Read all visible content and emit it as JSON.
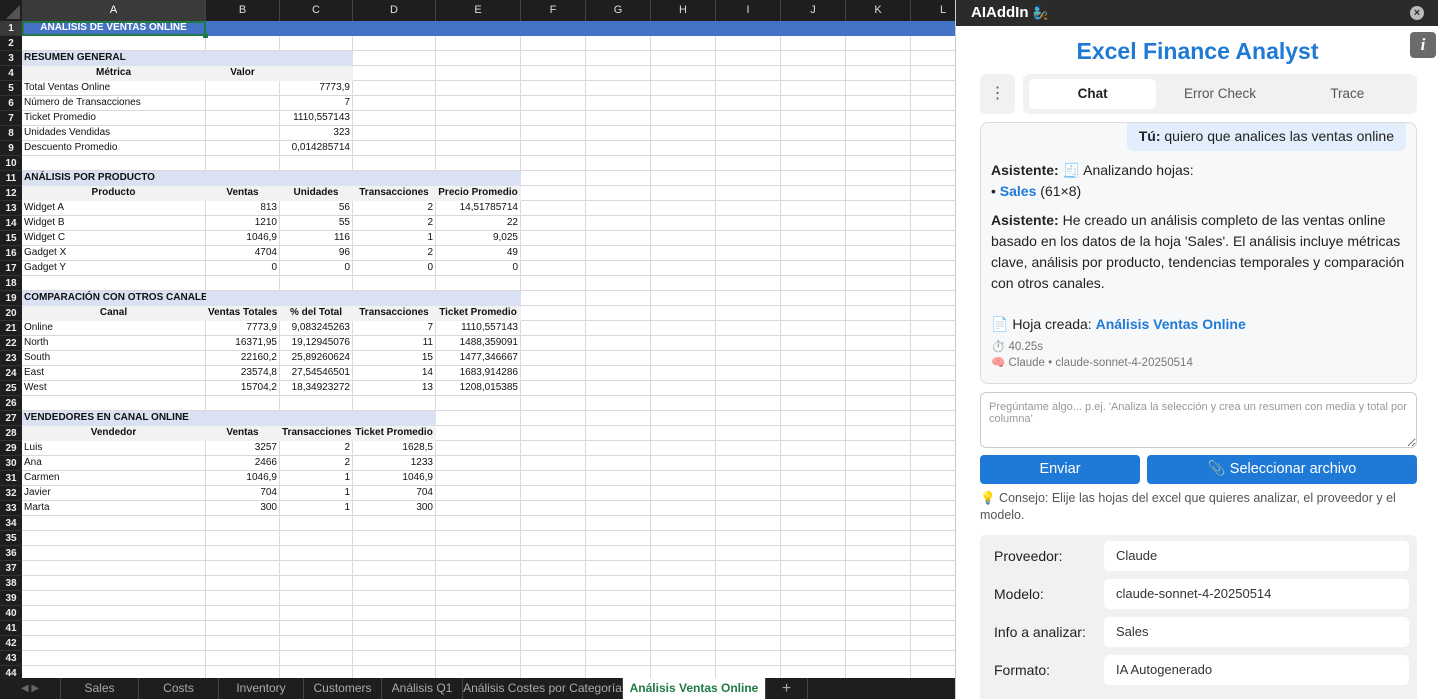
{
  "spreadsheet": {
    "columns": [
      "A",
      "B",
      "C",
      "D",
      "E",
      "F",
      "G",
      "H",
      "I",
      "J",
      "K",
      "L"
    ],
    "selected_cell": "A1",
    "rows": [
      {
        "r": 1,
        "style": "title",
        "span": 5,
        "cells": [
          "ANÁLISIS DE VENTAS ONLINE"
        ]
      },
      {
        "r": 2,
        "cells": []
      },
      {
        "r": 3,
        "style": "sec",
        "span": 3,
        "cells": [
          "RESUMEN GENERAL"
        ]
      },
      {
        "r": 4,
        "style": "hdr",
        "span": 3,
        "cells": [
          "Métrica",
          "Valor",
          ""
        ]
      },
      {
        "r": 5,
        "cells": [
          "Total Ventas Online",
          "",
          "7773,9"
        ]
      },
      {
        "r": 6,
        "cells": [
          "Número de Transacciones",
          "",
          "7"
        ]
      },
      {
        "r": 7,
        "cells": [
          "Ticket Promedio",
          "",
          "1110,557143"
        ]
      },
      {
        "r": 8,
        "cells": [
          "Unidades Vendidas",
          "",
          "323"
        ]
      },
      {
        "r": 9,
        "cells": [
          "Descuento Promedio",
          "",
          "0,014285714"
        ]
      },
      {
        "r": 10,
        "cells": []
      },
      {
        "r": 11,
        "style": "sec",
        "span": 5,
        "cells": [
          "ANÁLISIS POR PRODUCTO"
        ]
      },
      {
        "r": 12,
        "style": "hdr",
        "span": 5,
        "cells": [
          "Producto",
          "Ventas",
          "Unidades",
          "Transacciones",
          "Precio Promedio"
        ]
      },
      {
        "r": 13,
        "cells": [
          "Widget A",
          "813",
          "56",
          "2",
          "14,51785714"
        ]
      },
      {
        "r": 14,
        "cells": [
          "Widget B",
          "1210",
          "55",
          "2",
          "22"
        ]
      },
      {
        "r": 15,
        "cells": [
          "Widget C",
          "1046,9",
          "116",
          "1",
          "9,025"
        ]
      },
      {
        "r": 16,
        "cells": [
          "Gadget X",
          "4704",
          "96",
          "2",
          "49"
        ]
      },
      {
        "r": 17,
        "cells": [
          "Gadget Y",
          "0",
          "0",
          "0",
          "0"
        ]
      },
      {
        "r": 18,
        "cells": []
      },
      {
        "r": 19,
        "style": "sec",
        "span": 5,
        "cells": [
          "COMPARACIÓN CON OTROS CANALES"
        ]
      },
      {
        "r": 20,
        "style": "hdr",
        "span": 5,
        "cells": [
          "Canal",
          "Ventas Totales",
          "% del Total",
          "Transacciones",
          "Ticket Promedio"
        ]
      },
      {
        "r": 21,
        "cells": [
          "Online",
          "7773,9",
          "9,083245263",
          "7",
          "1110,557143"
        ]
      },
      {
        "r": 22,
        "cells": [
          "North",
          "16371,95",
          "19,12945076",
          "11",
          "1488,359091"
        ]
      },
      {
        "r": 23,
        "cells": [
          "South",
          "22160,2",
          "25,89260624",
          "15",
          "1477,346667"
        ]
      },
      {
        "r": 24,
        "cells": [
          "East",
          "23574,8",
          "27,54546501",
          "14",
          "1683,914286"
        ]
      },
      {
        "r": 25,
        "cells": [
          "West",
          "15704,2",
          "18,34923272",
          "13",
          "1208,015385"
        ]
      },
      {
        "r": 26,
        "cells": []
      },
      {
        "r": 27,
        "style": "sec",
        "span": 4,
        "cells": [
          "VENDEDORES EN CANAL ONLINE"
        ]
      },
      {
        "r": 28,
        "style": "hdr",
        "span": 4,
        "cells": [
          "Vendedor",
          "Ventas",
          "Transacciones",
          "Ticket Promedio"
        ]
      },
      {
        "r": 29,
        "cells": [
          "Luis",
          "3257",
          "2",
          "1628,5"
        ]
      },
      {
        "r": 30,
        "cells": [
          "Ana",
          "2466",
          "2",
          "1233"
        ]
      },
      {
        "r": 31,
        "cells": [
          "Carmen",
          "1046,9",
          "1",
          "1046,9"
        ]
      },
      {
        "r": 32,
        "cells": [
          "Javier",
          "704",
          "1",
          "704"
        ]
      },
      {
        "r": 33,
        "cells": [
          "Marta",
          "300",
          "1",
          "300"
        ]
      }
    ],
    "total_rows": 44,
    "sheet_tabs": [
      "Sales",
      "Costs",
      "Inventory",
      "Customers",
      "Análisis Q1",
      "Análisis Costes por Categoría",
      "Análisis Ventas Online"
    ],
    "active_tab": "Análisis Ventas Online",
    "add_tab": "+"
  },
  "panel": {
    "app_name": "AIAddIn",
    "close_icon": "×",
    "info_icon": "i",
    "title": "Excel Finance Analyst",
    "menu_icon": "⋮",
    "tabs": [
      "Chat",
      "Error Check",
      "Trace"
    ],
    "active_tab": "Chat",
    "chat": {
      "user_label": "Tú:",
      "user_msg": "quiero que analices las ventas online",
      "a_label": "Asistente:",
      "a1_text": "🧾 Analizando hojas:",
      "sheet_link": "Sales",
      "sheet_dims": "(61×8)",
      "a2_text": "He creado un análisis completo de las ventas online basado en los datos de la hoja 'Sales'. El análisis incluye métricas clave, análisis por producto, tendencias temporales y comparación con otros canales.",
      "created_prefix": "📄 Hoja creada:",
      "created_link": "Análisis Ventas Online",
      "time": "⏱️ 40.25s",
      "model_line": "🧠 Claude • claude-sonnet-4-20250514"
    },
    "input_placeholder": "Pregúntame algo... p.ej. 'Analiza la selección y crea un resumen con media y total por columna'",
    "send_label": "Enviar",
    "file_label": "📎 Seleccionar archivo",
    "tip": "💡 Consejo: Elije las hojas del excel que quieres analizar, el proveedor y el modelo.",
    "config": [
      {
        "label": "Proveedor:",
        "value": "Claude"
      },
      {
        "label": "Modelo:",
        "value": "claude-sonnet-4-20250514"
      },
      {
        "label": "Info a analizar:",
        "value": "Sales"
      },
      {
        "label": "Formato:",
        "value": "IA Autogenerado"
      }
    ],
    "accent": "#1e7ad6"
  }
}
